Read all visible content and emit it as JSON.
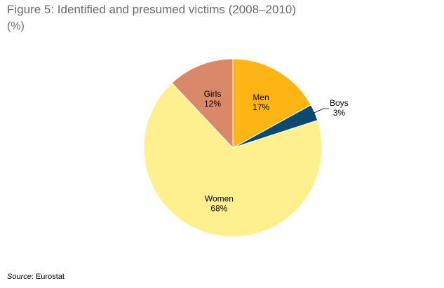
{
  "chart_data": {
    "type": "pie",
    "title": "Figure 5: Identified and presumed victims (2008–2010)",
    "subtitle": "(%)",
    "slices": [
      {
        "label": "Men",
        "value": 17,
        "value_label": "17%",
        "color": "#fcb514"
      },
      {
        "label": "Boys",
        "value": 3,
        "value_label": "3%",
        "color": "#0e4a6e"
      },
      {
        "label": "Women",
        "value": 68,
        "value_label": "68%",
        "color": "#fff08f"
      },
      {
        "label": "Girls",
        "value": 12,
        "value_label": "12%",
        "color": "#d9896a"
      }
    ],
    "legend": "none"
  },
  "source": {
    "label": "Source",
    "text": ": Eurostat"
  }
}
